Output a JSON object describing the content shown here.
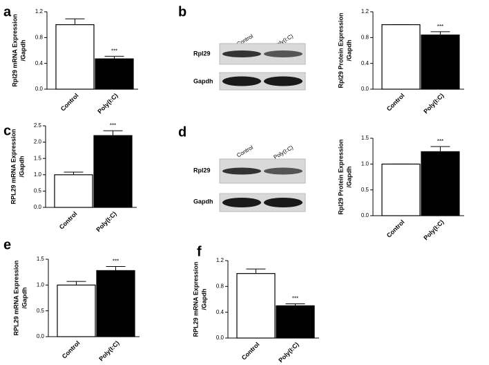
{
  "chart_data": [
    {
      "type": "bar",
      "panel": "a",
      "ylabel": [
        "Rpl29 mRNA Expression",
        "/Gapdh"
      ],
      "categories": [
        "Control",
        "Poly(I:C)"
      ],
      "values": [
        1.0,
        0.47
      ],
      "errors": [
        0.09,
        0.04
      ],
      "colors": [
        "#ffffff",
        "#000000"
      ],
      "annotation": "***",
      "ylim": [
        0,
        1.2
      ],
      "yticks": [
        {
          "value": 0,
          "label": "0.0"
        },
        0.4,
        0.8,
        1.2
      ]
    },
    {
      "type": "bar",
      "panel": "b",
      "ylabel": [
        "Rpl29 Protein Expression",
        "/Gapdh"
      ],
      "categories": [
        "Control",
        "Poly(I:C)"
      ],
      "values": [
        1.0,
        0.84
      ],
      "errors": [
        0,
        0.05
      ],
      "colors": [
        "#ffffff",
        "#000000"
      ],
      "annotation": "***",
      "ylim": [
        0,
        1.2
      ],
      "yticks": [
        {
          "value": 0,
          "label": "0.0"
        },
        0.4,
        0.8,
        1.2
      ]
    },
    {
      "type": "bar",
      "panel": "c",
      "ylabel": [
        "RPL29 mRNA Expression",
        "/Gapdh"
      ],
      "categories": [
        "Control",
        "Poly(I:C)"
      ],
      "values": [
        1.0,
        2.2
      ],
      "errors": [
        0.08,
        0.15
      ],
      "colors": [
        "#ffffff",
        "#000000"
      ],
      "annotation": "***",
      "ylim": [
        0,
        2.5
      ],
      "yticks": [
        {
          "value": 0,
          "label": "0.0"
        },
        0.5,
        {
          "value": 1,
          "label": "1.0"
        },
        1.5,
        {
          "value": 2,
          "label": "2.0"
        },
        2.5
      ]
    },
    {
      "type": "bar",
      "panel": "d",
      "ylabel": [
        "Rpl29 Protein Expression",
        "/Gapdh"
      ],
      "categories": [
        "Control",
        "Poly(I:C)"
      ],
      "values": [
        1.0,
        1.24
      ],
      "errors": [
        0,
        0.1
      ],
      "colors": [
        "#ffffff",
        "#000000"
      ],
      "annotation": "***",
      "ylim": [
        0,
        1.5
      ],
      "yticks": [
        {
          "value": 0,
          "label": "0.0"
        },
        0.5,
        {
          "value": 1,
          "label": "1.0"
        },
        1.5
      ]
    },
    {
      "type": "bar",
      "panel": "e",
      "ylabel": [
        "RPL29 mRNA Expression",
        "/Gapdh"
      ],
      "categories": [
        "Control",
        "Poly(I:C)"
      ],
      "values": [
        1.0,
        1.28
      ],
      "errors": [
        0.07,
        0.08
      ],
      "colors": [
        "#ffffff",
        "#000000"
      ],
      "annotation": "***",
      "ylim": [
        0,
        1.5
      ],
      "yticks": [
        {
          "value": 0,
          "label": "0.0"
        },
        0.5,
        {
          "value": 1,
          "label": "1.0"
        },
        1.5
      ]
    },
    {
      "type": "bar",
      "panel": "f",
      "ylabel": [
        "RPL29 mRNA Expression",
        "/Gapdh"
      ],
      "categories": [
        "Control",
        "Poly(I:C)"
      ],
      "values": [
        1.0,
        0.5
      ],
      "errors": [
        0.07,
        0.03
      ],
      "colors": [
        "#ffffff",
        "#000000"
      ],
      "annotation": "***",
      "ylim": [
        0,
        1.2
      ],
      "yticks": [
        {
          "value": 0,
          "label": "0.0"
        },
        0.4,
        0.8,
        1.2
      ]
    }
  ],
  "blots": [
    {
      "lanes": [
        "Control",
        "Poly(I:C)"
      ],
      "bands": [
        "Rpl29",
        "Gapdh"
      ]
    },
    {
      "lanes": [
        "Control",
        "Poly(I:C)"
      ],
      "bands": [
        "Rpl29",
        "Gapdh"
      ]
    }
  ]
}
